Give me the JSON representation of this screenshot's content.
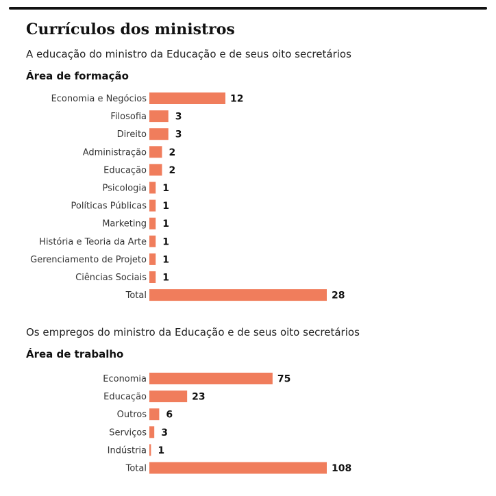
{
  "header": {
    "title": "Currículos dos ministros"
  },
  "sections": [
    {
      "subtitle": "A educação do ministro da Educação e de seus oito secretários",
      "heading": "Área de formação"
    },
    {
      "subtitle": "Os empregos do ministro da Educação e de seus oito secretários",
      "heading": "Área de trabalho"
    }
  ],
  "colors": {
    "bar": "#f07d5c",
    "rule": "#111111"
  },
  "chart_data": [
    {
      "type": "bar",
      "orientation": "horizontal",
      "title": "Área de formação",
      "categories": [
        "Economia e Negócios",
        "Filosofia",
        "Direito",
        "Administração",
        "Educação",
        "Psicologia",
        "Políticas Públicas",
        "Marketing",
        "História e Teoria da Arte",
        "Gerenciamento de Projeto",
        "Ciências Sociais",
        "Total"
      ],
      "values": [
        12,
        3,
        3,
        2,
        2,
        1,
        1,
        1,
        1,
        1,
        1,
        28
      ],
      "xlim": [
        0,
        28
      ],
      "grid": false,
      "legend": "none"
    },
    {
      "type": "bar",
      "orientation": "horizontal",
      "title": "Área de trabalho",
      "categories": [
        "Economia",
        "Educação",
        "Outros",
        "Serviços",
        "Indústria",
        "Total"
      ],
      "values": [
        75,
        23,
        6,
        3,
        1,
        108
      ],
      "xlim": [
        0,
        108
      ],
      "grid": false,
      "legend": "none"
    }
  ]
}
